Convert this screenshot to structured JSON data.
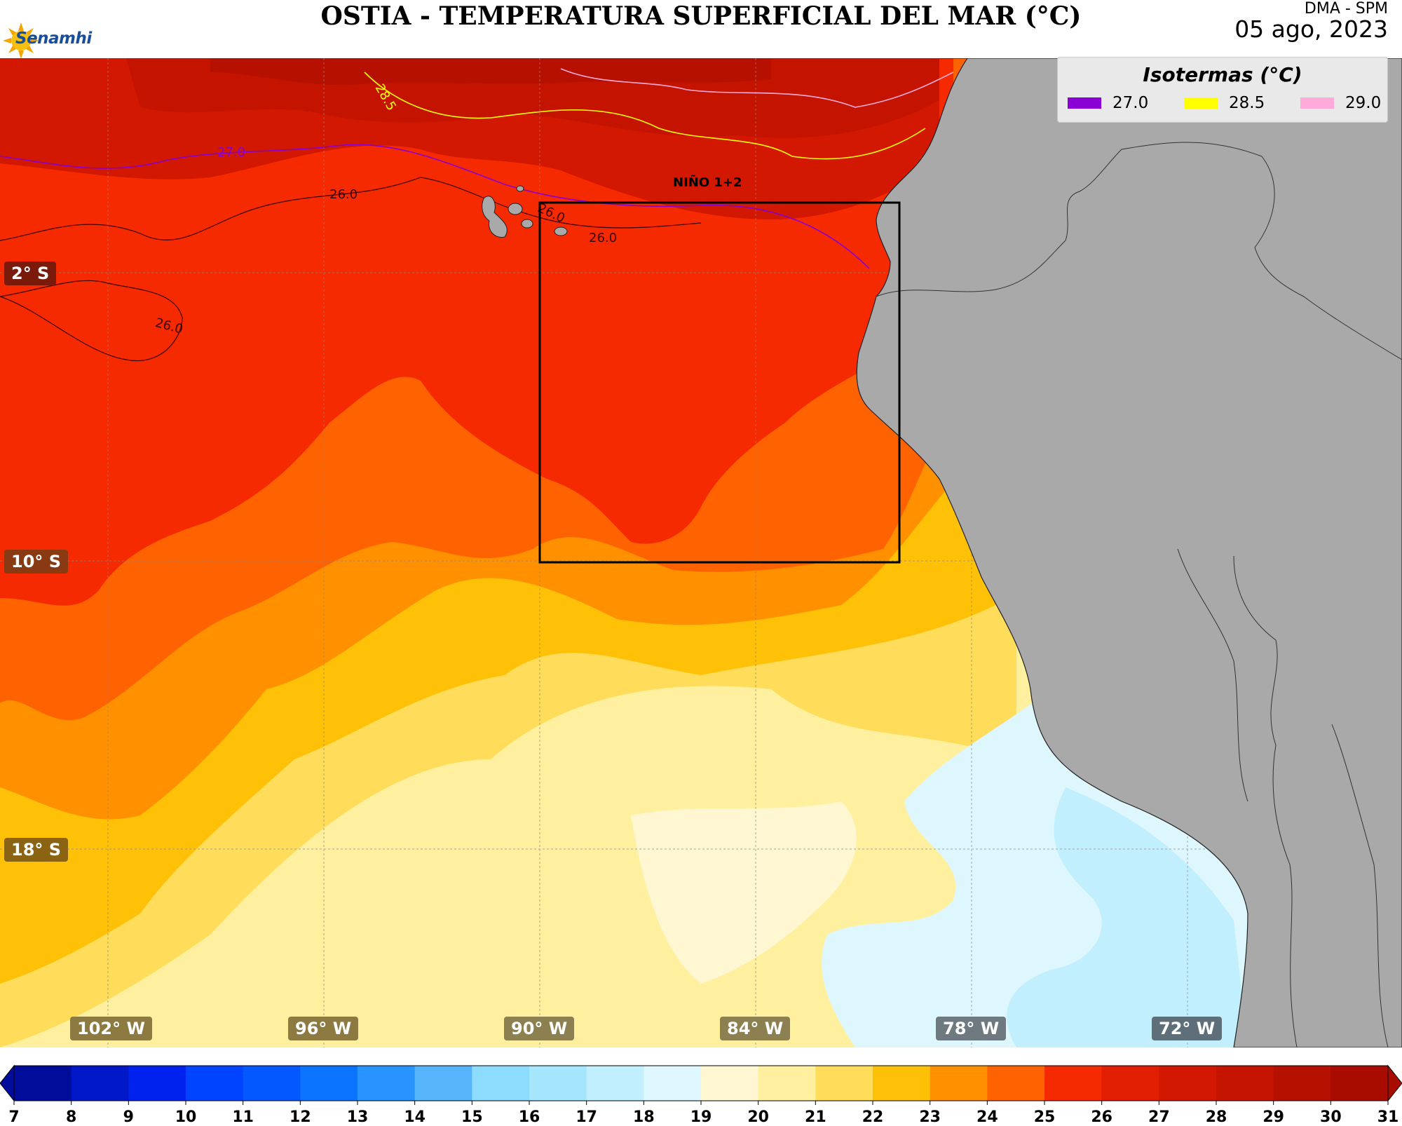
{
  "header": {
    "title": "OSTIA - TEMPERATURA SUPERFICIAL DEL MAR (°C)",
    "agency": "DMA - SPM",
    "date": "05 ago, 2023",
    "logo_text": "Senamhi"
  },
  "map": {
    "land_color": "#a9a9a9",
    "region_label": "NIÑO 1+2",
    "latitude_labels": [
      "2° S",
      "10° S",
      "18° S"
    ],
    "longitude_labels": [
      "102° W",
      "96° W",
      "90° W",
      "84° W",
      "78° W",
      "72° W"
    ],
    "contour_labels": [
      "27.0",
      "28.5",
      "26.0",
      "26.0",
      "26.0",
      "26.0"
    ]
  },
  "legend": {
    "title": "Isotermas (°C)",
    "items": [
      {
        "label": "27.0",
        "color": "#8a00d4"
      },
      {
        "label": "28.5",
        "color": "#ffff00"
      },
      {
        "label": "29.0",
        "color": "#ffaad8"
      }
    ]
  },
  "colorbar": {
    "ticks": [
      "7",
      "8",
      "9",
      "10",
      "11",
      "12",
      "13",
      "14",
      "15",
      "16",
      "17",
      "18",
      "19",
      "20",
      "21",
      "22",
      "23",
      "24",
      "25",
      "26",
      "27",
      "28",
      "29",
      "30",
      "31"
    ],
    "colors": [
      "#000c9a",
      "#0018c8",
      "#0022ee",
      "#0044ff",
      "#0458ff",
      "#0a74ff",
      "#2994ff",
      "#56b4fb",
      "#8ddcfd",
      "#a6e6fd",
      "#c2effd",
      "#def6fd",
      "#fff6d2",
      "#fff0a0",
      "#ffdc5a",
      "#ffc107",
      "#ff9000",
      "#ff6200",
      "#f52a00",
      "#e21e00",
      "#d21800",
      "#c41400",
      "#b51000",
      "#a80c00"
    ]
  }
}
